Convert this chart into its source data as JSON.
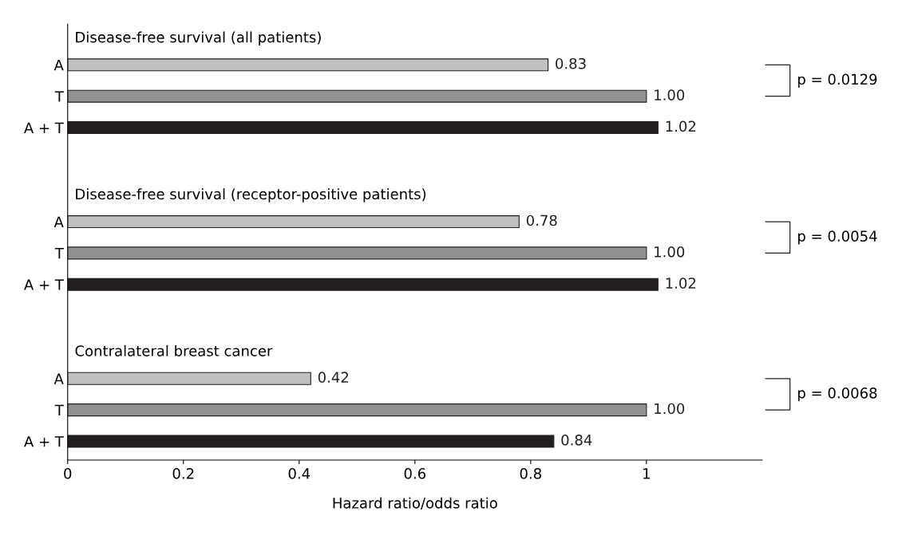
{
  "chart_data": {
    "type": "bar",
    "orientation": "horizontal",
    "xlabel": "Hazard ratio/odds ratio",
    "categories": [
      "A",
      "T",
      "A + T",
      null,
      null,
      "A",
      "T",
      "A + T",
      null,
      null,
      "A",
      "T",
      "A + T"
    ],
    "values": [
      0.83,
      1.0,
      1.02,
      null,
      null,
      0.78,
      1.0,
      1.02,
      null,
      null,
      0.42,
      1.0,
      0.84
    ],
    "colors": [
      "#c0c0c2",
      "#919193",
      "#231f20",
      null,
      null,
      "#c0c0c2",
      "#919193",
      "#231f20",
      null,
      null,
      "#c0c0c2",
      "#919193",
      "#231f20"
    ],
    "data_labels": true,
    "value_labels": [
      "0.83",
      "1.00",
      "1.02",
      null,
      null,
      "0.78",
      "1.00",
      "1.02",
      null,
      null,
      "0.42",
      "1.00",
      "0.84"
    ],
    "xlim": [
      0,
      1.2
    ],
    "xticks": [
      0,
      0.2,
      0.4,
      0.6,
      0.8,
      1
    ],
    "grid": false,
    "annotations": [
      "Disease-free survival (all patients)",
      "p = 0.0129",
      "Disease-free survival (receptor-positive patients)",
      "p = 0.0054",
      "Contralateral breast cancer",
      "p = 0.0068"
    ]
  }
}
